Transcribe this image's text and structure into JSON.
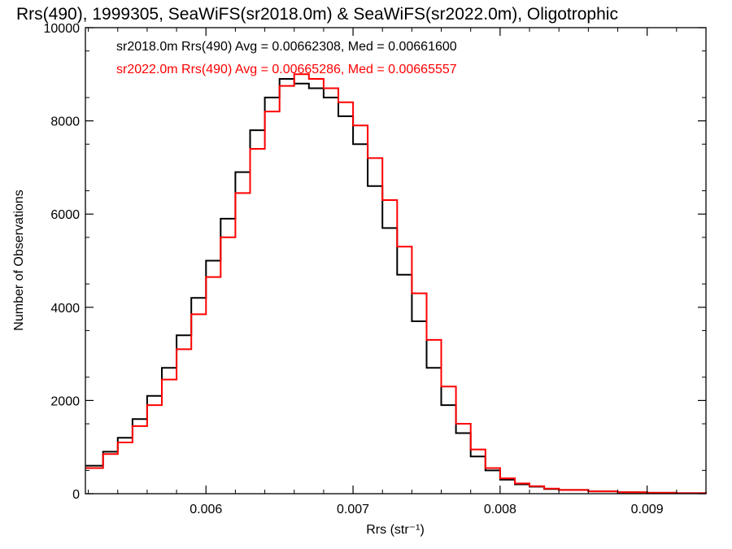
{
  "chart_data": {
    "type": "line",
    "title": "Rrs(490), 1999305, SeaWiFS(sr2018.0m) & SeaWiFS(sr2022.0m), Oligotrophic",
    "xlabel": "Rrs (str⁻¹)",
    "ylabel": "Number of Observations",
    "xlim": [
      0.00518,
      0.0094
    ],
    "ylim": [
      0,
      10000
    ],
    "x_ticks": [
      0.006,
      0.007,
      0.008,
      0.009
    ],
    "x_tick_labels": [
      "0.006",
      "0.007",
      "0.008",
      "0.009"
    ],
    "y_ticks": [
      0,
      2000,
      4000,
      6000,
      8000,
      10000
    ],
    "y_tick_labels": [
      "0",
      "2000",
      "4000",
      "6000",
      "8000",
      "10000"
    ],
    "grid": false,
    "legend_position": "top-left",
    "series": [
      {
        "name": "sr2018.0m",
        "annotation": "sr2018.0m Rrs(490) Avg = 0.00662308, Med = 0.00661600",
        "color": "#000000",
        "x": [
          0.00518,
          0.0053,
          0.0054,
          0.0055,
          0.0056,
          0.0057,
          0.0058,
          0.0059,
          0.006,
          0.0061,
          0.0062,
          0.0063,
          0.0064,
          0.0065,
          0.0066,
          0.0067,
          0.0068,
          0.0069,
          0.007,
          0.0071,
          0.0072,
          0.0073,
          0.0074,
          0.0075,
          0.0076,
          0.0077,
          0.0078,
          0.0079,
          0.008,
          0.0081,
          0.0082,
          0.0083,
          0.0084,
          0.0086,
          0.0088,
          0.009,
          0.0092,
          0.0094
        ],
        "y": [
          600,
          900,
          1200,
          1600,
          2100,
          2700,
          3400,
          4200,
          5000,
          5900,
          6900,
          7800,
          8500,
          8900,
          8800,
          8700,
          8500,
          8100,
          7500,
          6600,
          5700,
          4700,
          3700,
          2700,
          1900,
          1300,
          800,
          500,
          300,
          200,
          150,
          100,
          80,
          50,
          30,
          20,
          10,
          0
        ]
      },
      {
        "name": "sr2022.0m",
        "annotation": "sr2022.0m Rrs(490) Avg = 0.00665286, Med = 0.00665557",
        "color": "#ff0000",
        "x": [
          0.00518,
          0.0053,
          0.0054,
          0.0055,
          0.0056,
          0.0057,
          0.0058,
          0.0059,
          0.006,
          0.0061,
          0.0062,
          0.0063,
          0.0064,
          0.0065,
          0.0066,
          0.0067,
          0.0068,
          0.0069,
          0.007,
          0.0071,
          0.0072,
          0.0073,
          0.0074,
          0.0075,
          0.0076,
          0.0077,
          0.0078,
          0.0079,
          0.008,
          0.0081,
          0.0082,
          0.0083,
          0.0084,
          0.0086,
          0.0088,
          0.009,
          0.0092,
          0.0094
        ],
        "y": [
          550,
          850,
          1100,
          1450,
          1900,
          2450,
          3100,
          3850,
          4650,
          5500,
          6450,
          7400,
          8200,
          8750,
          9000,
          8900,
          8700,
          8400,
          7900,
          7200,
          6300,
          5300,
          4300,
          3300,
          2300,
          1500,
          950,
          550,
          330,
          220,
          160,
          110,
          80,
          50,
          30,
          20,
          10,
          0
        ]
      }
    ]
  }
}
